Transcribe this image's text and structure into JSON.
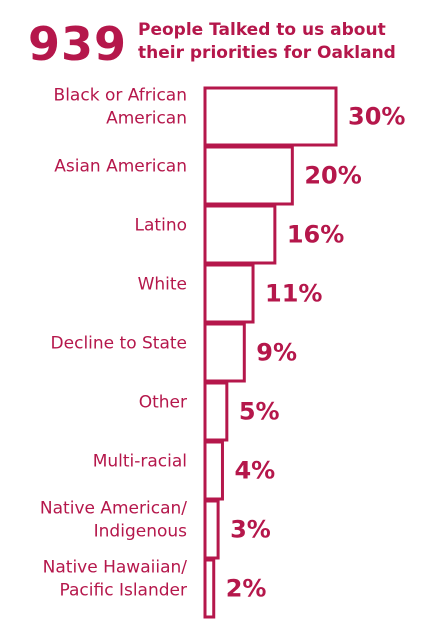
{
  "colors": {
    "accent": "#B5174B",
    "background": "#FFFFFF"
  },
  "header": {
    "number": "939",
    "headline_line1": "People Talked to us about",
    "headline_line2": "their priorities for Oakland"
  },
  "chart_data": {
    "type": "bar",
    "orientation": "horizontal",
    "title": "",
    "xlabel": "",
    "ylabel": "",
    "categories": [
      [
        "Black or African",
        "American"
      ],
      [
        "Asian American"
      ],
      [
        "Latino"
      ],
      [
        "White"
      ],
      [
        "Decline to State"
      ],
      [
        "Other"
      ],
      [
        "Multi-racial"
      ],
      [
        "Native American/",
        "Indigenous"
      ],
      [
        "Native Hawaiian/",
        "Pacific Islander"
      ]
    ],
    "values": [
      30,
      20,
      16,
      11,
      9,
      5,
      4,
      3,
      2
    ],
    "value_labels": [
      "30%",
      "20%",
      "16%",
      "11%",
      "9%",
      "5%",
      "4%",
      "3%",
      "2%"
    ],
    "unit": "%",
    "xlim": [
      0,
      30
    ],
    "grid": false,
    "legend": "none"
  }
}
